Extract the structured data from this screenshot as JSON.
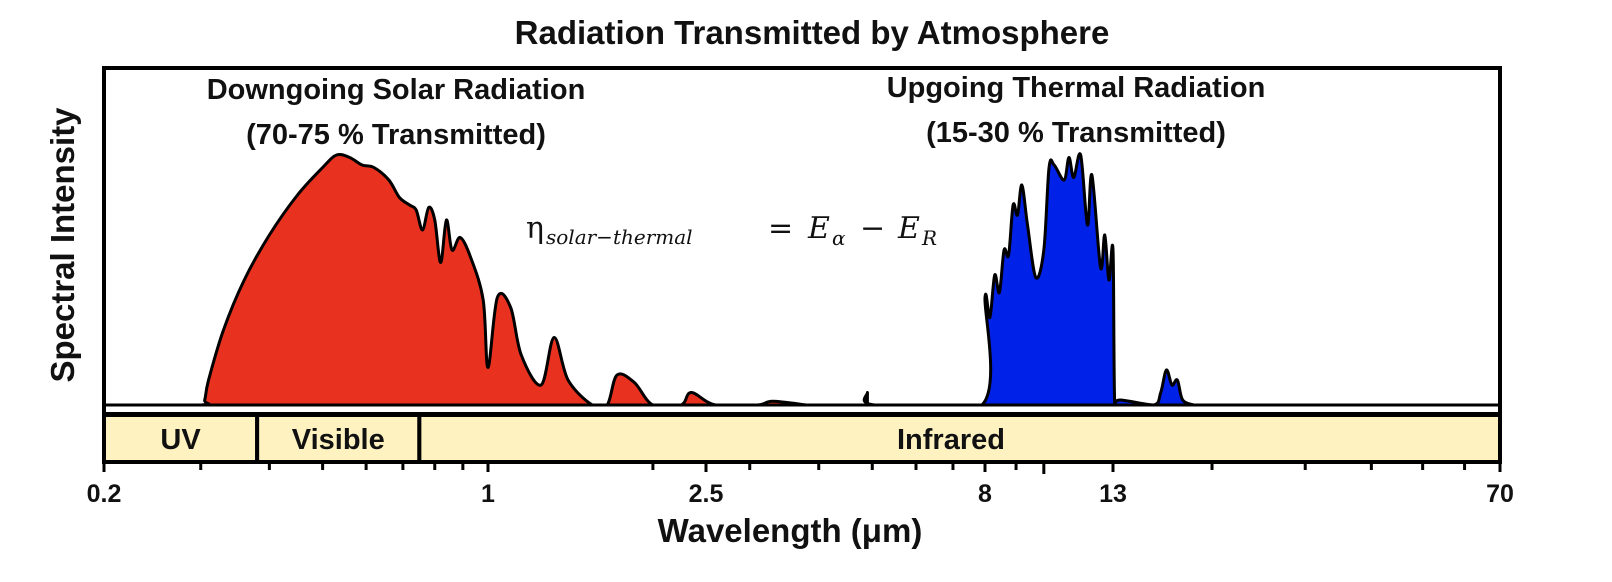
{
  "chart_data": {
    "type": "area",
    "title": "Radiation Transmitted by Atmosphere",
    "xlabel": "Wavelength (μm)",
    "ylabel": "Spectral Intensity",
    "xscale": "log",
    "xlim": [
      0.2,
      70
    ],
    "x_tick_labels": [
      "0.2",
      "1",
      "2.5",
      "8",
      "13",
      "70"
    ],
    "x_tick_values": [
      0.2,
      1,
      2.5,
      8,
      13,
      70
    ],
    "grid": false,
    "bands": [
      {
        "label": "UV",
        "from": 0.2,
        "to": 0.38
      },
      {
        "label": "Visible",
        "from": 0.38,
        "to": 0.75
      },
      {
        "label": "Infrared",
        "from": 0.75,
        "to": 70
      }
    ],
    "annotations": [
      {
        "line1": "Downgoing Solar Radiation",
        "line2": "(70-75 % Transmitted)",
        "position": "top-left"
      },
      {
        "line1": "Upgoing  Thermal Radiation",
        "line2": "(15-30 % Transmitted)",
        "position": "top-right"
      }
    ],
    "equation": {
      "eta": "η",
      "eta_sub": "solar−thermal",
      "equals": "=",
      "term1": "E",
      "term1_sub": "α",
      "minus": "−",
      "term2": "E",
      "term2_sub": "R"
    },
    "series": [
      {
        "name": "Downgoing Solar Radiation",
        "color": "#e8321f",
        "y_units": "relative (0-1)",
        "points": [
          [
            0.2,
            0
          ],
          [
            0.3,
            0
          ],
          [
            0.305,
            0.02
          ],
          [
            0.31,
            0.1
          ],
          [
            0.33,
            0.3
          ],
          [
            0.36,
            0.5
          ],
          [
            0.4,
            0.68
          ],
          [
            0.45,
            0.84
          ],
          [
            0.5,
            0.95
          ],
          [
            0.53,
            1.0
          ],
          [
            0.56,
            0.99
          ],
          [
            0.59,
            0.96
          ],
          [
            0.62,
            0.95
          ],
          [
            0.66,
            0.9
          ],
          [
            0.69,
            0.83
          ],
          [
            0.72,
            0.8
          ],
          [
            0.74,
            0.78
          ],
          [
            0.76,
            0.7
          ],
          [
            0.78,
            0.79
          ],
          [
            0.8,
            0.74
          ],
          [
            0.82,
            0.57
          ],
          [
            0.84,
            0.74
          ],
          [
            0.86,
            0.62
          ],
          [
            0.89,
            0.67
          ],
          [
            0.93,
            0.59
          ],
          [
            0.98,
            0.42
          ],
          [
            1.0,
            0.15
          ],
          [
            1.04,
            0.43
          ],
          [
            1.1,
            0.39
          ],
          [
            1.15,
            0.2
          ],
          [
            1.25,
            0.08
          ],
          [
            1.32,
            0.27
          ],
          [
            1.4,
            0.1
          ],
          [
            1.55,
            0.0
          ],
          [
            1.65,
            0.0
          ],
          [
            1.72,
            0.12
          ],
          [
            1.85,
            0.09
          ],
          [
            2.0,
            0.0
          ],
          [
            2.25,
            0.0
          ],
          [
            2.35,
            0.05
          ],
          [
            2.6,
            0.0
          ],
          [
            3.1,
            0.0
          ],
          [
            3.3,
            0.015
          ],
          [
            3.8,
            0.0
          ]
        ]
      },
      {
        "name": "Upgoing Thermal Radiation",
        "color": "#0022e8",
        "y_units": "relative (0-1)",
        "points": [
          [
            4.9,
            0.05
          ],
          [
            5.05,
            0.0
          ],
          [
            7.9,
            0.0
          ],
          [
            8.0,
            0.43
          ],
          [
            8.15,
            0.35
          ],
          [
            8.3,
            0.52
          ],
          [
            8.45,
            0.45
          ],
          [
            8.6,
            0.62
          ],
          [
            8.75,
            0.6
          ],
          [
            8.9,
            0.8
          ],
          [
            9.05,
            0.76
          ],
          [
            9.2,
            0.88
          ],
          [
            9.4,
            0.72
          ],
          [
            9.7,
            0.51
          ],
          [
            10.0,
            0.62
          ],
          [
            10.2,
            0.95
          ],
          [
            10.4,
            0.96
          ],
          [
            10.8,
            0.9
          ],
          [
            11.0,
            0.99
          ],
          [
            11.2,
            0.91
          ],
          [
            11.5,
            1.0
          ],
          [
            11.8,
            0.72
          ],
          [
            12.0,
            0.92
          ],
          [
            12.4,
            0.55
          ],
          [
            12.6,
            0.68
          ],
          [
            12.8,
            0.5
          ],
          [
            13.0,
            0.62
          ],
          [
            13.1,
            0.0
          ],
          [
            13.4,
            0.02
          ],
          [
            15.5,
            0.0
          ],
          [
            16.0,
            0.05
          ],
          [
            16.4,
            0.14
          ],
          [
            16.8,
            0.08
          ],
          [
            17.2,
            0.1
          ],
          [
            17.6,
            0.02
          ],
          [
            18.5,
            0.0
          ]
        ]
      }
    ]
  }
}
